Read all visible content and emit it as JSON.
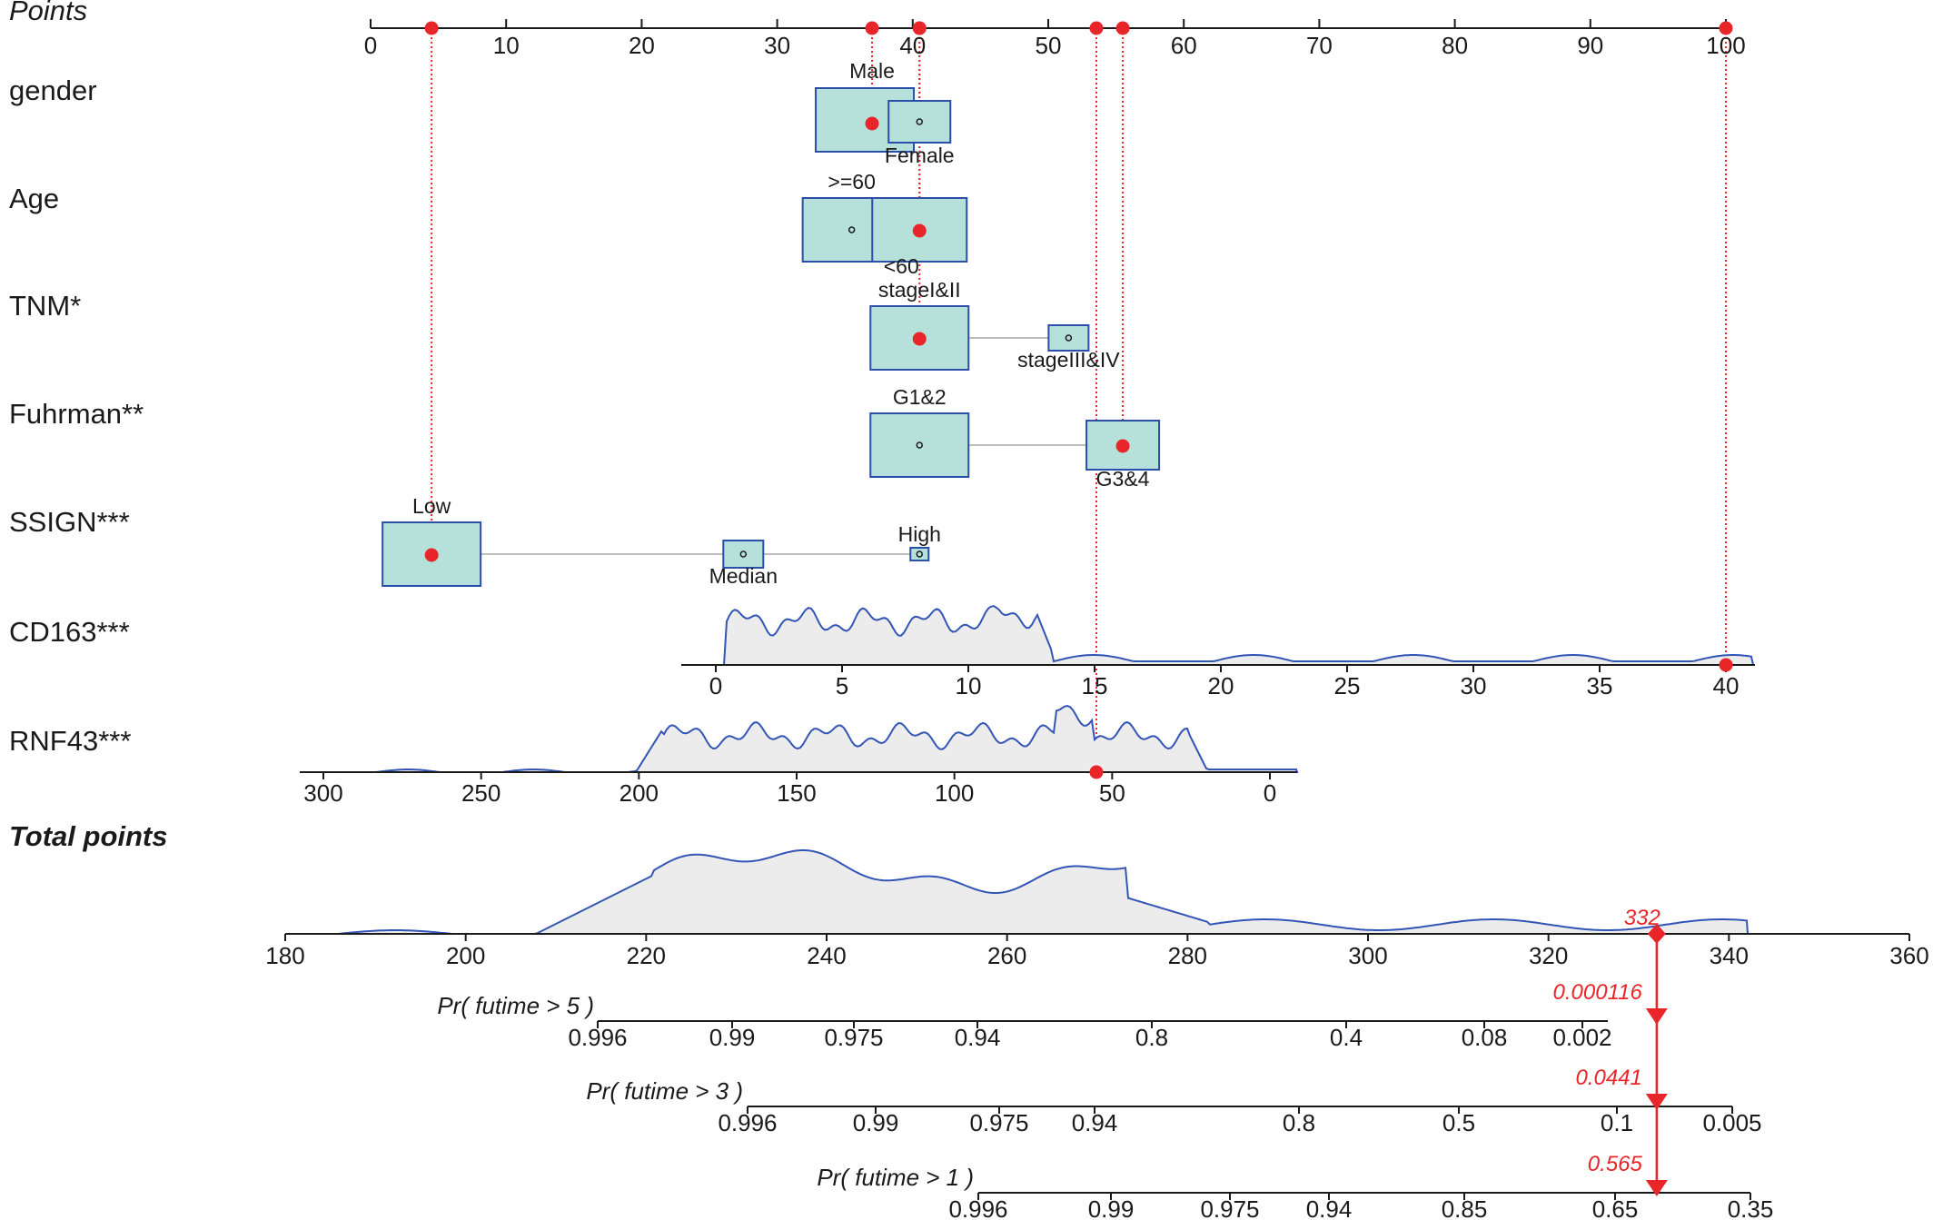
{
  "chart_data": {
    "type": "nomogram",
    "points_axis": {
      "label": "Points",
      "range": [
        0,
        100
      ],
      "ticks": [
        0,
        10,
        20,
        30,
        40,
        50,
        60,
        70,
        80,
        90,
        100
      ]
    },
    "variables": [
      {
        "name": "gender",
        "levels": [
          {
            "label": "Male",
            "points": 37
          },
          {
            "label": "Female",
            "points": 40.5
          }
        ],
        "selected": "Male",
        "selected_points": 37
      },
      {
        "name": "Age",
        "levels": [
          {
            "label": ">=60",
            "points": 35.5
          },
          {
            "label": "<60",
            "points": 40.5
          }
        ],
        "selected": "<60",
        "selected_points": 40.5
      },
      {
        "name": "TNM*",
        "levels": [
          {
            "label": "stageI&II",
            "points": 40.5
          },
          {
            "label": "stageIII&IV",
            "points": 51.5
          }
        ],
        "selected": "stageI&II",
        "selected_points": 40.5
      },
      {
        "name": "Fuhrman**",
        "levels": [
          {
            "label": "G1&2",
            "points": 40.5
          },
          {
            "label": "G3&4",
            "points": 55.5
          }
        ],
        "selected": "G3&4",
        "selected_points": 55.5
      },
      {
        "name": "SSIGN***",
        "levels": [
          {
            "label": "Low",
            "points": 4.5
          },
          {
            "label": "Median",
            "points": 27.5
          },
          {
            "label": "High",
            "points": 40.5
          }
        ],
        "selected": "Low",
        "selected_points": 4.5
      },
      {
        "name": "CD163***",
        "ticks": [
          0,
          5,
          10,
          15,
          20,
          25,
          30,
          35,
          40
        ],
        "selected_value": 40,
        "selected_points": 100
      },
      {
        "name": "RNF43***",
        "ticks": [
          300,
          250,
          200,
          150,
          100,
          50,
          0
        ],
        "selected_value": 55,
        "selected_points": 53.5
      }
    ],
    "total_points": {
      "label": "Total points",
      "ticks": [
        180,
        200,
        220,
        240,
        260,
        280,
        300,
        320,
        340,
        360
      ],
      "value": 332,
      "value_label": "332"
    },
    "probabilities": [
      {
        "label": "Pr( futime > 5 )",
        "ticks": [
          "0.996",
          "0.99",
          "0.975",
          "0.94",
          "0.8",
          "0.4",
          "0.08",
          "0.002"
        ],
        "value": "0.000116"
      },
      {
        "label": "Pr( futime > 3 )",
        "ticks": [
          "0.996",
          "0.99",
          "0.975",
          "0.94",
          "0.8",
          "0.5",
          "0.1",
          "0.005"
        ],
        "value": "0.0441"
      },
      {
        "label": "Pr( futime > 1 )",
        "ticks": [
          "0.996",
          "0.99",
          "0.975",
          "0.94",
          "0.85",
          "0.65",
          "0.35"
        ],
        "value": "0.565"
      }
    ],
    "colors": {
      "box_fill": "#b6e0da",
      "box_stroke": "#2b4ea8",
      "density_fill": "#ececec",
      "density_line": "#3355b5",
      "marker": "#e8262a",
      "connector": "#bdbdbd",
      "axis": "#1a1a1a"
    }
  }
}
